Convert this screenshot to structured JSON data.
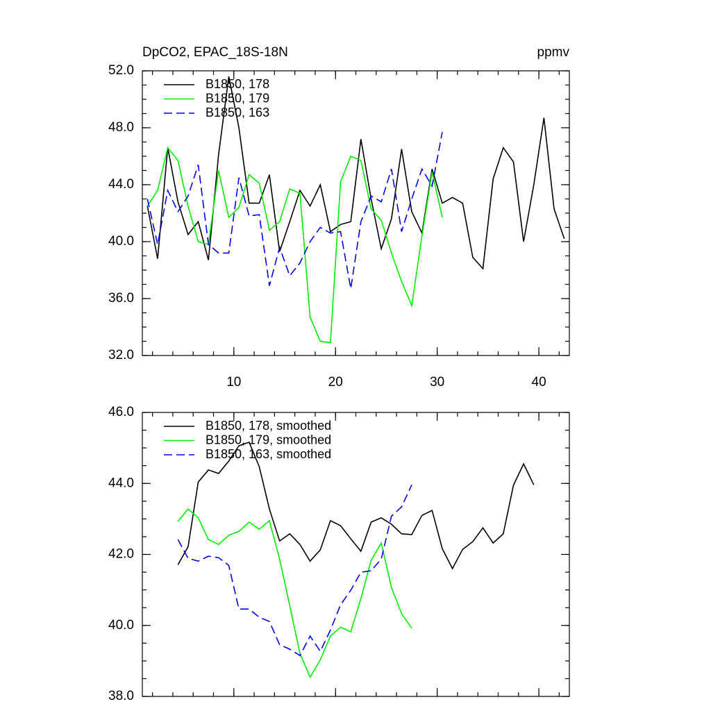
{
  "chart_data": [
    {
      "type": "line",
      "title": "DpCO2, EPAC_18S-18N",
      "units_label": "ppmv",
      "xlim": [
        1,
        43
      ],
      "xticks": [
        10,
        20,
        30,
        40
      ],
      "ylim": [
        32,
        52
      ],
      "yticks": [
        {
          "value": 32,
          "label": "32.0"
        },
        {
          "value": 36,
          "label": "36.0"
        },
        {
          "value": 40,
          "label": "40.0"
        },
        {
          "value": 44,
          "label": "44.0"
        },
        {
          "value": 48,
          "label": "48.0"
        },
        {
          "value": 52,
          "label": "52.0"
        }
      ],
      "legend": "upper left",
      "series": [
        {
          "name": "B1850, 178",
          "color": "#000000",
          "line_style": "solid",
          "x": [
            1.5,
            2.5,
            3.5,
            4.5,
            5.5,
            6.5,
            7.5,
            8.5,
            9.5,
            10.5,
            11.5,
            12.5,
            13.5,
            14.5,
            15.5,
            16.5,
            17.5,
            18.5,
            19.5,
            20.5,
            21.5,
            22.5,
            23.5,
            24.5,
            25.5,
            26.5,
            27.5,
            28.5,
            29.5,
            30.5,
            31.5,
            32.5,
            33.5,
            34.5,
            35.5,
            36.5,
            37.5,
            38.5,
            39.5,
            40.5,
            41.5,
            42.5
          ],
          "values": [
            42.5,
            38.8,
            46.6,
            42.8,
            40.5,
            41.4,
            38.7,
            46.1,
            51.6,
            48.0,
            42.7,
            42.7,
            44.7,
            39.3,
            41.4,
            43.6,
            42.5,
            44.0,
            40.7,
            41.2,
            41.4,
            47.2,
            43.0,
            39.5,
            41.6,
            46.5,
            42.1,
            40.6,
            45.1,
            42.7,
            43.1,
            42.7,
            38.9,
            38.1,
            44.4,
            46.6,
            45.6,
            40.0,
            44.0,
            48.7,
            42.3,
            40.2
          ]
        },
        {
          "name": "B1850, 179",
          "color": "#00ee00",
          "line_style": "solid",
          "x": [
            1.5,
            2.5,
            3.5,
            4.5,
            5.5,
            6.5,
            7.5,
            8.5,
            9.5,
            10.5,
            11.5,
            12.5,
            13.5,
            14.5,
            15.5,
            16.5,
            17.5,
            18.5,
            19.5,
            20.5,
            21.5,
            22.5,
            23.5,
            24.5,
            25.5,
            26.5,
            27.5,
            28.5,
            29.5,
            30.5
          ],
          "values": [
            42.5,
            43.6,
            46.6,
            45.7,
            42.5,
            40.0,
            39.8,
            45.0,
            41.7,
            42.4,
            44.7,
            44.1,
            40.8,
            41.4,
            43.7,
            43.4,
            34.7,
            33.0,
            32.9,
            44.2,
            46.0,
            45.7,
            42.3,
            41.5,
            39.2,
            37.2,
            35.5,
            40.4,
            44.9,
            41.7
          ]
        },
        {
          "name": "B1850, 163",
          "color": "#0000ee",
          "line_style": "dashed",
          "x": [
            1.5,
            2.5,
            3.5,
            4.5,
            5.5,
            6.5,
            7.5,
            8.5,
            9.5,
            10.5,
            11.5,
            12.5,
            13.5,
            14.5,
            15.5,
            16.5,
            17.5,
            18.5,
            19.5,
            20.5,
            21.5,
            22.5,
            23.5,
            24.5,
            25.5,
            26.5,
            27.5,
            28.5,
            29.5,
            30.5
          ],
          "values": [
            43.0,
            39.8,
            43.6,
            42.1,
            43.2,
            45.4,
            39.8,
            39.2,
            39.2,
            44.5,
            41.8,
            41.9,
            36.9,
            39.6,
            37.6,
            38.5,
            40.0,
            41.0,
            40.6,
            40.7,
            36.7,
            41.4,
            43.2,
            42.8,
            45.1,
            40.7,
            43.0,
            45.1,
            43.9,
            47.7
          ]
        }
      ]
    },
    {
      "type": "line",
      "xlim": [
        1,
        43
      ],
      "xticks": [
        10,
        20,
        30,
        40
      ],
      "ylim": [
        38,
        46
      ],
      "yticks": [
        {
          "value": 38,
          "label": "38.0"
        },
        {
          "value": 40,
          "label": "40.0"
        },
        {
          "value": 42,
          "label": "42.0"
        },
        {
          "value": 44,
          "label": "44.0"
        },
        {
          "value": 46,
          "label": "46.0"
        }
      ],
      "legend": "upper left",
      "series": [
        {
          "name": "B1850, 178, smoothed",
          "color": "#000000",
          "line_style": "solid",
          "x": [
            4.5,
            5.5,
            6.5,
            7.5,
            8.5,
            9.5,
            10.5,
            11.5,
            12.5,
            13.5,
            14.5,
            15.5,
            16.5,
            17.5,
            18.5,
            19.5,
            20.5,
            21.5,
            22.5,
            23.5,
            24.5,
            25.5,
            26.5,
            27.5,
            28.5,
            29.5,
            30.5,
            31.5,
            32.5,
            33.5,
            34.5,
            35.5,
            36.5,
            37.5,
            38.5,
            39.5
          ],
          "values": [
            41.71,
            42.22,
            44.04,
            44.38,
            44.28,
            44.63,
            45.06,
            45.16,
            44.47,
            43.28,
            42.38,
            42.58,
            42.28,
            41.81,
            42.13,
            42.95,
            42.81,
            42.44,
            42.09,
            42.91,
            43.03,
            42.85,
            42.58,
            42.56,
            43.1,
            43.24,
            42.16,
            41.6,
            42.14,
            42.36,
            42.75,
            42.32,
            42.58,
            43.95,
            44.55,
            43.96
          ]
        },
        {
          "name": "B1850, 179, smoothed",
          "color": "#00ee00",
          "line_style": "solid",
          "x": [
            4.5,
            5.5,
            6.5,
            7.5,
            8.5,
            9.5,
            10.5,
            11.5,
            12.5,
            13.5,
            14.5,
            15.5,
            16.5,
            17.5,
            18.5,
            19.5,
            20.5,
            21.5,
            22.5,
            23.5,
            24.5,
            25.5,
            26.5,
            27.5
          ],
          "values": [
            42.93,
            43.28,
            43.03,
            42.42,
            42.28,
            42.54,
            42.65,
            42.91,
            42.71,
            42.95,
            41.87,
            40.56,
            39.21,
            38.54,
            39.03,
            39.7,
            39.95,
            39.82,
            40.76,
            41.83,
            42.32,
            41.07,
            40.33,
            39.92
          ]
        },
        {
          "name": "B1850, 163, smoothed",
          "color": "#0000ee",
          "line_style": "dashed",
          "x": [
            4.5,
            5.5,
            6.5,
            7.5,
            8.5,
            9.5,
            10.5,
            11.5,
            12.5,
            13.5,
            14.5,
            15.5,
            16.5,
            17.5,
            18.5,
            19.5,
            20.5,
            21.5,
            22.5,
            23.5,
            24.5,
            25.5,
            26.5,
            27.5
          ],
          "values": [
            42.42,
            41.89,
            41.81,
            41.95,
            41.91,
            41.69,
            40.46,
            40.46,
            40.23,
            40.11,
            39.46,
            39.33,
            39.15,
            39.7,
            39.27,
            39.87,
            40.58,
            40.99,
            41.5,
            41.54,
            41.87,
            43.08,
            43.34,
            43.96
          ]
        }
      ]
    }
  ]
}
